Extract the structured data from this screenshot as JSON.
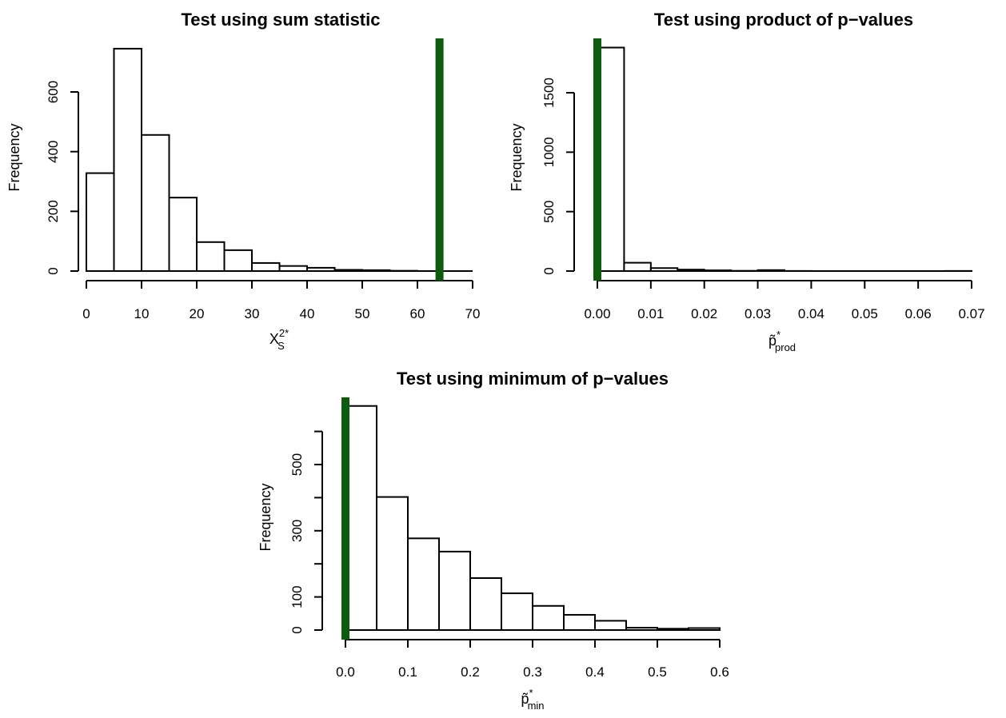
{
  "chart_data": [
    {
      "type": "bar",
      "title": "Test using sum statistic",
      "xlabel": "X",
      "xlabel_sup": "2*",
      "xlabel_sub": "S",
      "ylabel": "Frequency",
      "xlim": [
        0,
        70
      ],
      "ylim": [
        0,
        800
      ],
      "x_ticks": [
        0,
        10,
        20,
        30,
        40,
        50,
        60,
        70
      ],
      "x_tick_labels": [
        "0",
        "10",
        "20",
        "30",
        "40",
        "50",
        "60",
        "70"
      ],
      "y_ticks": [
        0,
        200,
        400,
        600
      ],
      "y_tick_labels": [
        "0",
        "200",
        "400",
        "600"
      ],
      "bin_edges": [
        0,
        5,
        10,
        15,
        20,
        25,
        30,
        35,
        40,
        45,
        50,
        55,
        60
      ],
      "values": [
        328,
        745,
        456,
        246,
        97,
        70,
        27,
        17,
        11,
        4,
        3,
        1
      ],
      "observed_value": 64,
      "observed_color": "#0d5c0d"
    },
    {
      "type": "bar",
      "title": "Test using product of p−values",
      "xlabel": "p̃",
      "xlabel_sup": "*",
      "xlabel_sub": "prod",
      "ylabel": "Frequency",
      "xlim": [
        0,
        0.07
      ],
      "ylim": [
        0,
        1900
      ],
      "x_ticks": [
        0,
        0.01,
        0.02,
        0.03,
        0.04,
        0.05,
        0.06,
        0.07
      ],
      "x_tick_labels": [
        "0.00",
        "0.01",
        "0.02",
        "0.03",
        "0.04",
        "0.05",
        "0.06",
        "0.07"
      ],
      "y_ticks": [
        0,
        500,
        1000,
        1500
      ],
      "y_tick_labels": [
        "0",
        "500",
        "1000",
        "1500"
      ],
      "bin_edges": [
        0,
        0.005,
        0.01,
        0.015,
        0.02,
        0.025,
        0.03,
        0.035,
        0.04,
        0.045,
        0.05,
        0.055,
        0.06,
        0.065,
        0.07
      ],
      "values": [
        1880,
        70,
        25,
        12,
        6,
        2,
        8,
        1,
        0,
        0,
        0,
        0,
        0,
        1
      ],
      "observed_value": 0,
      "observed_color": "#0d5c0d"
    },
    {
      "type": "bar",
      "title": "Test using minimum of p−values",
      "xlabel": "p̃",
      "xlabel_sup": "*",
      "xlabel_sub": "min",
      "ylabel": "Frequency",
      "xlim": [
        0,
        0.6
      ],
      "ylim": [
        0,
        700
      ],
      "x_ticks": [
        0,
        0.1,
        0.2,
        0.3,
        0.4,
        0.5,
        0.6
      ],
      "x_tick_labels": [
        "0.0",
        "0.1",
        "0.2",
        "0.3",
        "0.4",
        "0.5",
        "0.6"
      ],
      "y_ticks": [
        0,
        100,
        300,
        500
      ],
      "y_tick_labels": [
        "0",
        "100",
        "300",
        "500"
      ],
      "y_minor_ticks": [
        0,
        100,
        200,
        300,
        400,
        500,
        600
      ],
      "bin_edges": [
        0,
        0.05,
        0.1,
        0.15,
        0.2,
        0.25,
        0.3,
        0.35,
        0.4,
        0.45,
        0.5,
        0.55,
        0.6
      ],
      "values": [
        677,
        402,
        277,
        237,
        157,
        111,
        73,
        46,
        28,
        7,
        4,
        6
      ],
      "observed_value": 0,
      "observed_color": "#0d5c0d"
    }
  ]
}
